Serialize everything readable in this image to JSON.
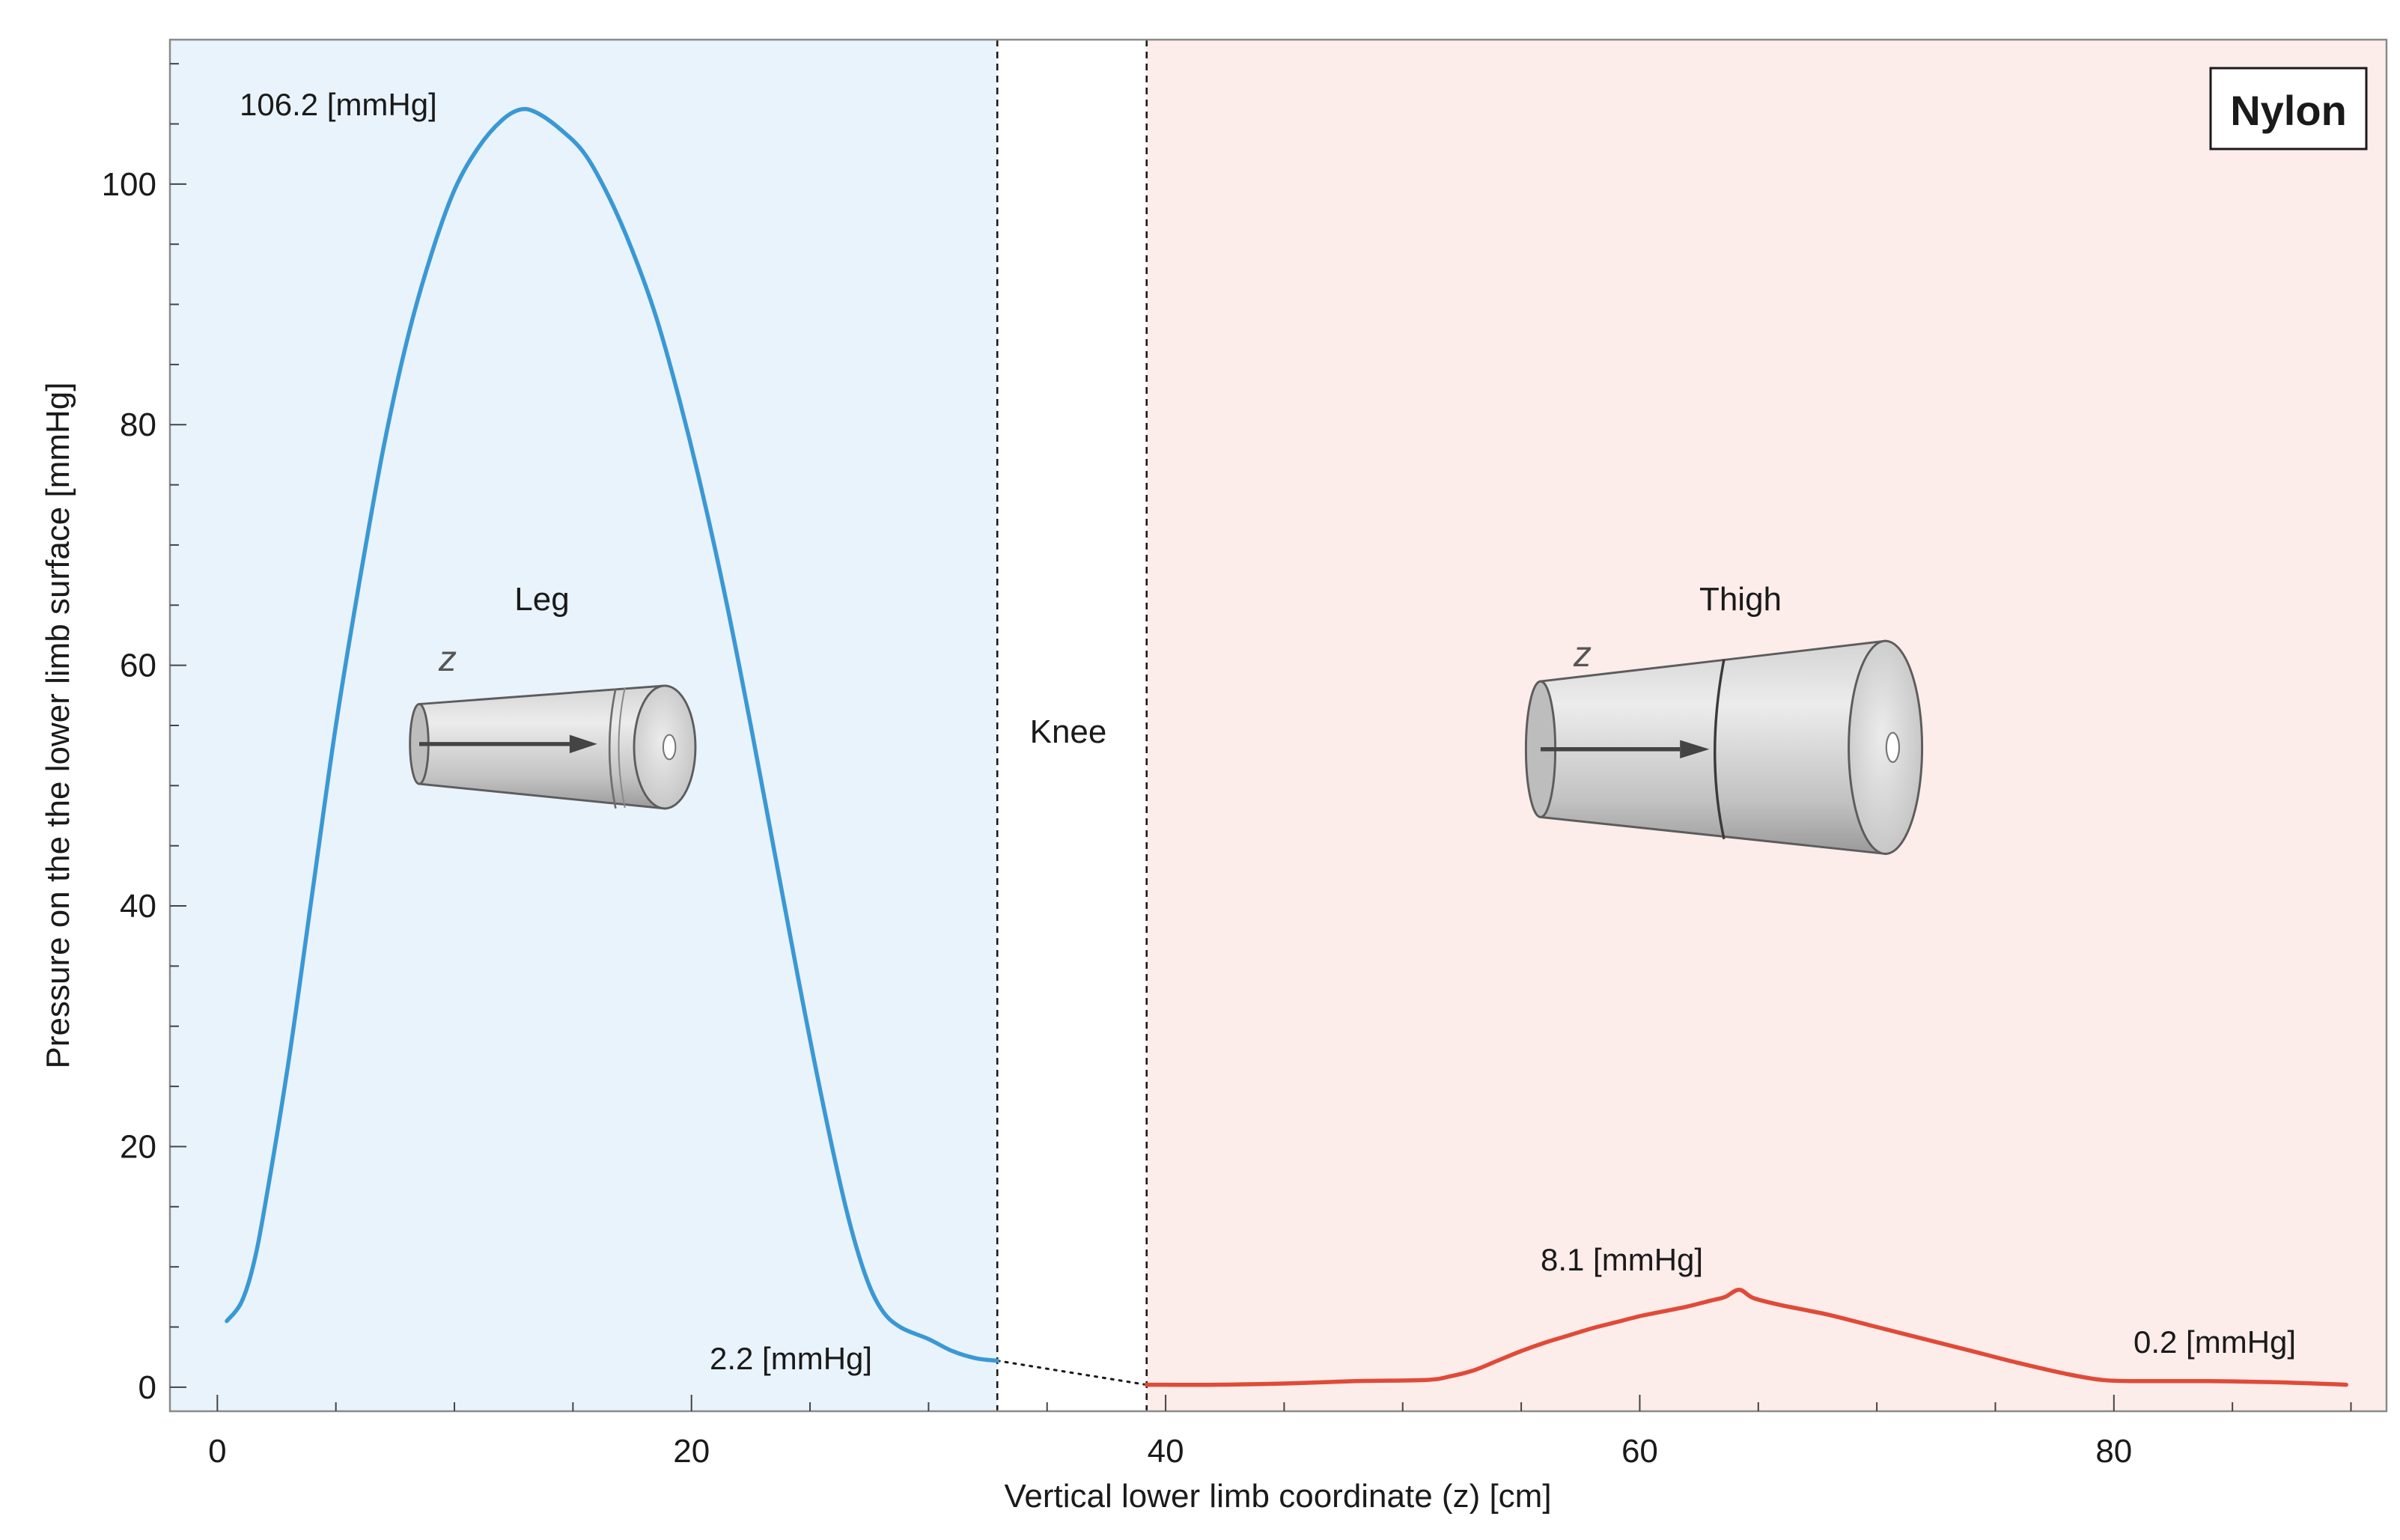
{
  "chart_data": {
    "type": "line",
    "xlabel": "Vertical lower limb coordinate (z) [cm]",
    "ylabel": "Pressure on the the lower limb surface [mmHg]",
    "xlim": [
      -2,
      91.5
    ],
    "ylim": [
      -2,
      112
    ],
    "x_ticks": [
      0,
      20,
      40,
      60,
      80
    ],
    "y_ticks": [
      0,
      20,
      40,
      60,
      80,
      100
    ],
    "x_tick_labels": [
      "0",
      "20",
      "40",
      "60",
      "80"
    ],
    "y_tick_labels": [
      "0",
      "20",
      "40",
      "60",
      "80",
      "100"
    ],
    "grid": false,
    "legend": null,
    "badge": "Nylon",
    "regions": [
      {
        "label": "Leg",
        "x_start": -2,
        "x_end": 32.9,
        "color": "#e9f3fb"
      },
      {
        "label": "Knee",
        "x_start": 32.9,
        "x_end": 39.2,
        "color": "#ffffff"
      },
      {
        "label": "Thigh",
        "x_start": 39.2,
        "x_end": 91.5,
        "color": "#fcecea"
      }
    ],
    "boundaries_x": [
      32.9,
      39.2
    ],
    "series": [
      {
        "color": "#3a98d4",
        "points": [
          [
            0.4,
            5.5
          ],
          [
            1,
            7
          ],
          [
            1.5,
            10
          ],
          [
            2,
            15
          ],
          [
            3,
            27
          ],
          [
            4,
            41
          ],
          [
            5,
            55
          ],
          [
            6,
            67
          ],
          [
            7,
            78
          ],
          [
            8,
            87
          ],
          [
            9,
            94
          ],
          [
            10,
            99.5
          ],
          [
            11,
            103
          ],
          [
            12,
            105.3
          ],
          [
            12.8,
            106.2
          ],
          [
            13.5,
            105.9
          ],
          [
            14.5,
            104.5
          ],
          [
            15.5,
            102.5
          ],
          [
            16.5,
            99
          ],
          [
            17.5,
            94.5
          ],
          [
            18.5,
            89
          ],
          [
            19.5,
            82
          ],
          [
            20.5,
            74
          ],
          [
            21.5,
            65
          ],
          [
            22.5,
            55
          ],
          [
            23.5,
            44.5
          ],
          [
            24.5,
            34
          ],
          [
            25.5,
            24
          ],
          [
            26.5,
            15
          ],
          [
            27.3,
            9.5
          ],
          [
            28,
            6.5
          ],
          [
            28.8,
            5
          ],
          [
            30,
            4
          ],
          [
            31,
            3
          ],
          [
            32,
            2.4
          ],
          [
            32.9,
            2.2
          ]
        ]
      },
      {
        "color": "#e04a38",
        "points": [
          [
            39.2,
            0.2
          ],
          [
            42,
            0.2
          ],
          [
            45,
            0.3
          ],
          [
            48,
            0.5
          ],
          [
            51,
            0.6
          ],
          [
            52,
            0.9
          ],
          [
            53,
            1.4
          ],
          [
            54,
            2.2
          ],
          [
            55,
            3.0
          ],
          [
            56,
            3.7
          ],
          [
            57,
            4.3
          ],
          [
            58,
            4.9
          ],
          [
            59,
            5.4
          ],
          [
            60,
            5.9
          ],
          [
            61,
            6.3
          ],
          [
            62,
            6.7
          ],
          [
            63,
            7.2
          ],
          [
            63.6,
            7.5
          ],
          [
            64.2,
            8.1
          ],
          [
            64.8,
            7.4
          ],
          [
            66,
            6.8
          ],
          [
            68,
            6.0
          ],
          [
            70,
            5.0
          ],
          [
            72,
            4.0
          ],
          [
            74,
            3.0
          ],
          [
            76,
            2.0
          ],
          [
            78,
            1.1
          ],
          [
            79.5,
            0.6
          ],
          [
            81,
            0.5
          ],
          [
            84,
            0.5
          ],
          [
            87,
            0.4
          ],
          [
            89.8,
            0.2
          ]
        ]
      }
    ],
    "connector": {
      "points": [
        [
          32.9,
          2.2
        ],
        [
          39.2,
          0.2
        ]
      ],
      "style": "dotted"
    },
    "annotations": [
      {
        "text": "106.2  [mmHg]",
        "x": 12.8,
        "y": 106.2
      },
      {
        "text": "2.2  [mmHg]",
        "x": 32.9,
        "y": 2.2
      },
      {
        "text": "8.1  [mmHg]",
        "x": 64.2,
        "y": 8.1
      },
      {
        "text": "0.2  [mmHg]",
        "x": 89.8,
        "y": 0.2
      }
    ],
    "insets": [
      {
        "label": "Leg",
        "axis_symbol": "z"
      },
      {
        "label": "Thigh",
        "axis_symbol": "z"
      }
    ]
  }
}
